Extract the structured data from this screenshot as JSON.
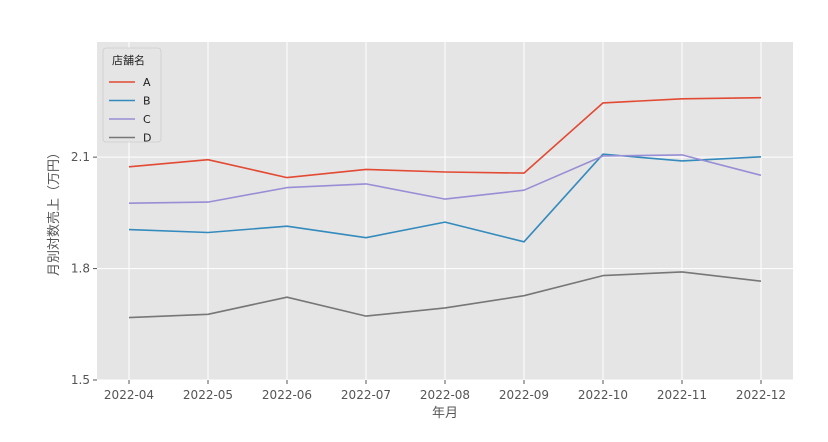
{
  "chart_data": {
    "type": "line",
    "title": "",
    "xlabel": "年月",
    "ylabel": "月別対数売上（万円）",
    "categories": [
      "2022-04",
      "2022-05",
      "2022-06",
      "2022-07",
      "2022-08",
      "2022-09",
      "2022-10",
      "2022-11",
      "2022-12"
    ],
    "yticks": [
      "1.5",
      "1.8",
      "2.1"
    ],
    "ylim": [
      1.5,
      2.41
    ],
    "grid": true,
    "legend": {
      "title": "店舗名",
      "placement": "top-left"
    },
    "series": [
      {
        "name": "A",
        "color": "#E24A33",
        "values": [
          2.074,
          2.093,
          2.045,
          2.067,
          2.06,
          2.057,
          2.246,
          2.257,
          2.26
        ]
      },
      {
        "name": "B",
        "color": "#348ABD",
        "values": [
          1.905,
          1.897,
          1.914,
          1.883,
          1.925,
          1.872,
          2.108,
          2.09,
          2.101
        ]
      },
      {
        "name": "C",
        "color": "#988ED5",
        "values": [
          1.976,
          1.979,
          2.018,
          2.028,
          1.987,
          2.011,
          2.103,
          2.106,
          2.051
        ]
      },
      {
        "name": "D",
        "color": "#777777",
        "values": [
          1.668,
          1.677,
          1.723,
          1.672,
          1.694,
          1.727,
          1.781,
          1.791,
          1.766
        ]
      }
    ]
  }
}
